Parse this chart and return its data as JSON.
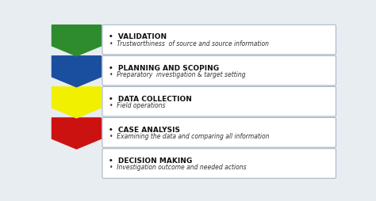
{
  "phases": [
    {
      "color": "#2e8b2e",
      "title": "VALIDATION",
      "subtitle": "Trustworthiness  of source and source information",
      "has_chevron": true
    },
    {
      "color": "#1a4fa0",
      "title": "PLANNING AND SCOPING",
      "subtitle": "Preparatory  investigation & target setting",
      "has_chevron": true
    },
    {
      "color": "#f0f000",
      "title": "DATA COLLECTION",
      "subtitle": "Field operations",
      "has_chevron": true
    },
    {
      "color": "#cc1111",
      "title": "CASE ANALYSIS",
      "subtitle": "Examining the data and comparing all information",
      "has_chevron": true
    },
    {
      "color": "#888888",
      "title": "DECISION MAKING",
      "subtitle": "Investigation outcome and needed actions",
      "has_chevron": false
    }
  ],
  "bg_color": "#e8edf2",
  "box_color": "#ffffff",
  "box_border": "#a0b0c0",
  "text_color": "#111111",
  "subtitle_color": "#333333"
}
